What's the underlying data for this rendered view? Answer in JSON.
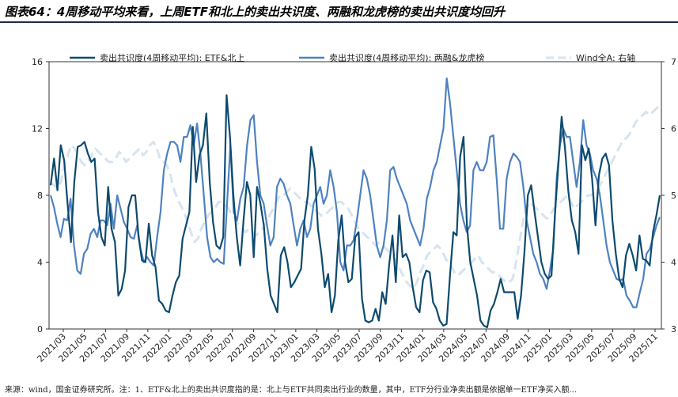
{
  "header": {
    "title": "图表64：4周移动平均来看，上周ETF和北上的卖出共识度、两融和龙虎榜的卖出共识度均回升"
  },
  "footer": {
    "text": "来源：wind，国金证券研究所。注：1、ETF&北上的卖出共识度指的是：北上与ETF共同卖出行业的数量，其中，ETF分行业净卖出额是依据单一ETF净买入额..."
  },
  "chart_data": {
    "type": "line",
    "x_tick_labels": [
      "2021/03",
      "2021/05",
      "2021/07",
      "2021/09",
      "2021/11",
      "2022/01",
      "2022/03",
      "2022/05",
      "2022/07",
      "2022/09",
      "2022/11",
      "2023/01",
      "2023/03",
      "2023/05",
      "2023/07",
      "2023/09",
      "2023/11",
      "2024/01",
      "2024/03",
      "2024/05",
      "2024/07",
      "2024/09",
      "2024/11",
      "2025/01",
      "2025/03",
      "2025/05",
      "2025/07",
      "2025/09",
      "2025/11"
    ],
    "y_left": {
      "min": 0,
      "max": 16,
      "ticks": [
        "0",
        "4",
        "8",
        "12",
        "16"
      ]
    },
    "y_right": {
      "min": 3,
      "max": 7,
      "ticks": [
        "3",
        "4",
        "5",
        "6",
        "7"
      ],
      "label": "右轴"
    },
    "grid": false,
    "legend_position": "top",
    "series": [
      {
        "name": "卖出共识度(4周移动平均): ETF&北上",
        "color": "#0d4a6e",
        "axis": "left",
        "style": "solid",
        "values": [
          8.6,
          10.2,
          8.3,
          11.0,
          10.1,
          7.5,
          5.2,
          8.8,
          10.9,
          11.0,
          11.2,
          10.5,
          10.0,
          10.2,
          7.0,
          5.5,
          5.0,
          8.5,
          6.0,
          5.2,
          2.0,
          2.4,
          3.5,
          7.3,
          8.0,
          8.0,
          5.5,
          4.1,
          4.0,
          6.3,
          4.4,
          3.7,
          1.7,
          1.5,
          1.1,
          1.0,
          2.0,
          2.8,
          3.2,
          5.4,
          6.2,
          7.0,
          12.1,
          8.8,
          10.4,
          11.0,
          12.9,
          8.8,
          6.4,
          5.0,
          4.8,
          5.5,
          14.0,
          11.5,
          8.0,
          5.5,
          3.8,
          6.5,
          8.8,
          8.0,
          4.3,
          8.5,
          7.5,
          6.2,
          3.6,
          2.0,
          1.5,
          1.0,
          4.4,
          4.9,
          4.0,
          2.5,
          2.8,
          3.2,
          3.6,
          6.5,
          8.0,
          10.9,
          9.6,
          6.0,
          4.5,
          2.5,
          3.3,
          1.0,
          2.0,
          5.3,
          6.8,
          4.0,
          2.8,
          3.0,
          5.5,
          5.8,
          1.8,
          0.5,
          0.4,
          0.5,
          1.2,
          0.5,
          2.2,
          1.5,
          3.8,
          5.6,
          2.8,
          6.8,
          4.3,
          4.5,
          4.0,
          2.5,
          1.3,
          1.0,
          2.9,
          3.5,
          3.4,
          1.6,
          1.2,
          0.5,
          0.2,
          0.3,
          3.2,
          5.8,
          5.6,
          10.3,
          11.5,
          6.2,
          4.0,
          3.0,
          2.0,
          0.5,
          0.2,
          0.1,
          1.1,
          1.5,
          2.2,
          3.0,
          2.2,
          2.2,
          2.2,
          2.2,
          0.6,
          2.0,
          4.6,
          8.0,
          8.6,
          7.0,
          5.5,
          4.0,
          3.3,
          3.0,
          3.2,
          6.8,
          9.8,
          12.7,
          10.8,
          8.2,
          6.5,
          5.8,
          4.5,
          11.0,
          10.1,
          10.8,
          9.0,
          6.2,
          9.2,
          10.2,
          10.5,
          9.8,
          6.5,
          4.5,
          3.0,
          2.5,
          4.4,
          5.1,
          4.4,
          3.5,
          5.6,
          4.2,
          4.1,
          3.8,
          5.8,
          6.8,
          8.0
        ]
      },
      {
        "name": "卖出共识度(4周移动平均): 两融&龙虎榜",
        "color": "#4e82c0",
        "axis": "left",
        "style": "solid",
        "values": [
          8.0,
          7.3,
          6.3,
          5.5,
          6.6,
          6.5,
          7.8,
          5.0,
          3.5,
          3.3,
          4.5,
          4.8,
          5.7,
          6.0,
          5.5,
          6.5,
          6.5,
          6.2,
          7.5,
          6.0,
          8.0,
          7.2,
          6.4,
          6.0,
          5.5,
          5.4,
          6.2,
          4.8,
          4.0,
          4.3,
          4.0,
          3.8,
          5.5,
          7.0,
          9.5,
          10.5,
          11.2,
          11.2,
          11.0,
          10.0,
          11.5,
          11.5,
          12.2,
          11.0,
          12.3,
          10.5,
          8.0,
          5.5,
          4.3,
          4.0,
          4.2,
          4.0,
          3.9,
          7.5,
          11.0,
          7.0,
          6.5,
          7.8,
          8.5,
          11.0,
          12.5,
          12.8,
          10.0,
          8.0,
          7.5,
          6.2,
          5.0,
          5.5,
          8.5,
          9.0,
          8.7,
          8.0,
          7.5,
          6.2,
          5.0,
          6.0,
          6.5,
          5.5,
          6.0,
          7.5,
          8.0,
          8.5,
          7.5,
          8.0,
          9.5,
          8.5,
          7.0,
          4.0,
          3.5,
          5.0,
          5.0,
          5.3,
          6.5,
          8.0,
          9.5,
          9.0,
          8.0,
          6.5,
          5.0,
          4.3,
          5.0,
          6.5,
          9.5,
          9.7,
          9.0,
          8.5,
          8.0,
          7.5,
          6.5,
          6.0,
          5.5,
          5.0,
          6.0,
          7.8,
          8.5,
          9.5,
          10.0,
          11.0,
          12.0,
          15.0,
          13.5,
          11.5,
          9.5,
          7.5,
          6.5,
          5.8,
          6.2,
          9.5,
          10.0,
          9.5,
          9.5,
          10.0,
          11.5,
          11.6,
          9.0,
          6.0,
          6.0,
          9.0,
          10.0,
          10.5,
          10.3,
          10.0,
          8.5,
          6.5,
          5.5,
          4.5,
          4.0,
          3.3,
          3.0,
          2.4,
          3.5,
          4.8,
          9.0,
          11.0,
          12.0,
          11.5,
          11.5,
          10.0,
          8.5,
          10.0,
          12.5,
          11.0,
          10.5,
          9.5,
          9.0,
          8.0,
          6.5,
          5.0,
          4.0,
          3.5,
          3.0,
          2.9,
          3.0,
          2.0,
          1.7,
          1.3,
          1.3,
          2.2,
          3.0,
          4.5,
          4.8,
          5.5,
          6.2,
          6.7
        ]
      },
      {
        "name": "Wind全A: 右轴",
        "color": "#d6e4f0",
        "axis": "right",
        "style": "dashed",
        "values": [
          5.2,
          5.15,
          5.1,
          5.2,
          5.45,
          5.6,
          5.75,
          5.7,
          5.6,
          5.5,
          5.45,
          5.5,
          5.6,
          5.7,
          5.65,
          5.6,
          5.55,
          5.5,
          5.5,
          5.55,
          5.65,
          5.6,
          5.5,
          5.55,
          5.6,
          5.65,
          5.7,
          5.6,
          5.65,
          5.75,
          5.8,
          5.7,
          5.55,
          5.5,
          5.45,
          5.3,
          5.1,
          4.95,
          4.85,
          4.75,
          4.6,
          4.45,
          4.3,
          4.35,
          4.5,
          4.6,
          4.7,
          4.75,
          4.8,
          4.9,
          4.9,
          4.85,
          4.8,
          4.7,
          4.65,
          4.55,
          4.5,
          4.45,
          4.5,
          4.45,
          4.4,
          4.45,
          4.5,
          4.6,
          4.7,
          4.8,
          4.9,
          5.0,
          5.0,
          5.05,
          5.1,
          5.05,
          5.0,
          4.95,
          4.9,
          4.9,
          4.85,
          4.8,
          4.75,
          4.7,
          4.7,
          4.75,
          4.8,
          4.85,
          4.9,
          4.9,
          4.85,
          4.8,
          4.7,
          4.6,
          4.5,
          4.45,
          4.4,
          4.35,
          4.3,
          4.25,
          4.3,
          4.25,
          4.2,
          4.15,
          4.1,
          4.0,
          3.9,
          3.8,
          3.7,
          3.65,
          3.6,
          3.7,
          3.85,
          3.95,
          4.1,
          4.15,
          4.2,
          4.25,
          4.2,
          4.1,
          4.0,
          3.95,
          3.85,
          3.8,
          3.85,
          3.9,
          3.95,
          4.0,
          4.05,
          4.1,
          4.0,
          3.95,
          3.9,
          3.85,
          3.85,
          3.8,
          3.75,
          3.7,
          3.7,
          3.75,
          4.0,
          4.3,
          4.6,
          4.8,
          4.9,
          4.85,
          4.8,
          4.75,
          4.7,
          4.65,
          4.7,
          4.8,
          4.85,
          4.9,
          4.95,
          5.0,
          4.9,
          4.8,
          4.85,
          4.9,
          4.95,
          5.0,
          5.0,
          5.05,
          5.1,
          5.2,
          5.3,
          5.4,
          5.5,
          5.6,
          5.7,
          5.8,
          5.85,
          5.9,
          6.0,
          6.1,
          6.15,
          6.2,
          6.25,
          6.2,
          6.25,
          6.3,
          6.35
        ]
      }
    ]
  }
}
